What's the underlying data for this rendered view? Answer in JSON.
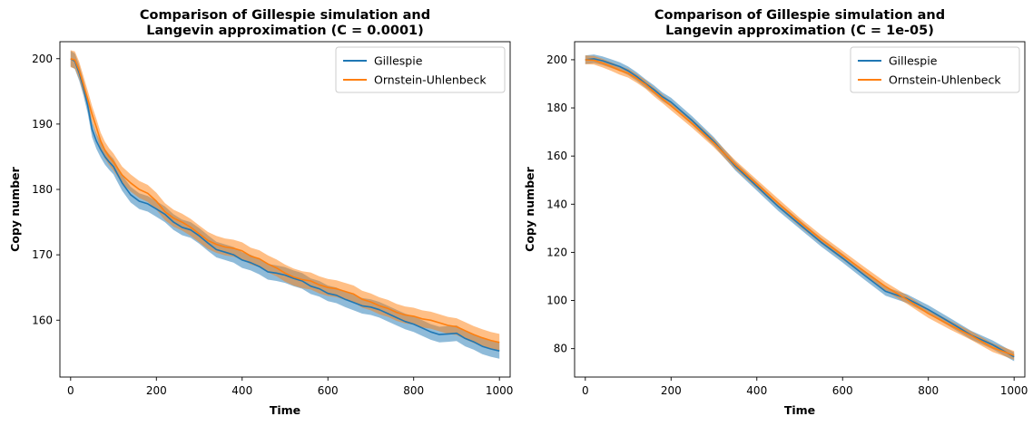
{
  "colors": {
    "gillespie": "#1f77b4",
    "ou": "#ff7f0e"
  },
  "chart_data": [
    {
      "type": "line",
      "title": "Comparison of Gillespie simulation and\nLangevin approximation (C = 0.0001)",
      "xlabel": "Time",
      "ylabel": "Copy number",
      "xlim": [
        -25,
        1025
      ],
      "ylim": [
        151.3,
        202.6
      ],
      "xticks": [
        0,
        200,
        400,
        600,
        800,
        1000
      ],
      "yticks": [
        160,
        170,
        180,
        190,
        200
      ],
      "legend_position": "upper-right",
      "series": [
        {
          "name": "Gillespie",
          "color": "#1f77b4",
          "band": 1.2,
          "x": [
            0,
            10,
            20,
            30,
            40,
            50,
            60,
            70,
            80,
            90,
            100,
            120,
            140,
            160,
            180,
            200,
            220,
            240,
            260,
            280,
            300,
            320,
            340,
            360,
            380,
            400,
            420,
            440,
            460,
            480,
            500,
            520,
            540,
            560,
            580,
            600,
            620,
            640,
            660,
            680,
            700,
            720,
            740,
            760,
            780,
            800,
            820,
            840,
            860,
            880,
            900,
            920,
            940,
            960,
            980,
            1000
          ],
          "y": [
            200,
            199.6,
            197.8,
            195.5,
            192.8,
            189.2,
            187.4,
            186.1,
            185.0,
            184.2,
            183.5,
            181.0,
            179.2,
            178.2,
            177.8,
            177.0,
            176.2,
            175.0,
            174.2,
            173.8,
            172.9,
            171.8,
            170.8,
            170.4,
            170.0,
            169.2,
            168.8,
            168.2,
            167.4,
            167.2,
            166.9,
            166.4,
            166.0,
            165.2,
            164.8,
            164.1,
            163.8,
            163.2,
            162.7,
            162.2,
            162.0,
            161.6,
            161.0,
            160.4,
            159.8,
            159.4,
            158.8,
            158.2,
            157.8,
            157.9,
            158.0,
            157.2,
            156.7,
            156.0,
            155.6,
            155.3
          ]
        },
        {
          "name": "Ornstein-Uhlenbeck",
          "color": "#ff7f0e",
          "band": 1.3,
          "x": [
            0,
            10,
            20,
            30,
            40,
            50,
            60,
            70,
            80,
            90,
            100,
            120,
            140,
            160,
            180,
            200,
            220,
            240,
            260,
            280,
            300,
            320,
            340,
            360,
            380,
            400,
            420,
            440,
            460,
            480,
            500,
            520,
            540,
            560,
            580,
            600,
            620,
            640,
            660,
            680,
            700,
            720,
            740,
            760,
            780,
            800,
            820,
            840,
            860,
            880,
            900,
            920,
            940,
            960,
            980,
            1000
          ],
          "y": [
            200,
            199.8,
            198.2,
            196.0,
            193.8,
            191.5,
            189.5,
            187.4,
            186.0,
            185.0,
            184.2,
            182.2,
            181.0,
            180.0,
            179.4,
            178.2,
            176.6,
            175.6,
            175.0,
            174.2,
            173.2,
            172.2,
            171.6,
            171.2,
            171.0,
            170.6,
            169.8,
            169.4,
            168.6,
            168.0,
            167.2,
            166.6,
            166.2,
            166.0,
            165.4,
            165.0,
            164.8,
            164.4,
            164.0,
            163.2,
            162.8,
            162.2,
            161.8,
            161.2,
            160.8,
            160.6,
            160.2,
            160.0,
            159.6,
            159.2,
            159.0,
            158.4,
            157.8,
            157.3,
            156.9,
            156.6
          ]
        }
      ]
    },
    {
      "type": "line",
      "title": "Comparison of Gillespie simulation and\nLangevin approximation (C = 1e-05)",
      "xlabel": "Time",
      "ylabel": "Copy number",
      "xlim": [
        -25,
        1025
      ],
      "ylim": [
        68.2,
        207.5
      ],
      "xticks": [
        0,
        200,
        400,
        600,
        800,
        1000
      ],
      "yticks": [
        80,
        100,
        120,
        140,
        160,
        180,
        200
      ],
      "legend_position": "upper-right",
      "series": [
        {
          "name": "Gillespie",
          "color": "#1f77b4",
          "band": 1.8,
          "x": [
            0,
            20,
            40,
            60,
            80,
            100,
            120,
            140,
            160,
            180,
            200,
            250,
            300,
            350,
            400,
            450,
            500,
            550,
            600,
            650,
            700,
            750,
            800,
            850,
            900,
            950,
            1000
          ],
          "y": [
            200,
            200.4,
            199.6,
            198.4,
            197.2,
            195.4,
            193.0,
            190.2,
            187.6,
            184.6,
            182.4,
            174.6,
            166.0,
            155.8,
            147.4,
            139.0,
            131.6,
            124.2,
            117.6,
            110.6,
            103.8,
            100.8,
            96.2,
            91.0,
            85.6,
            81.6,
            76.6
          ]
        },
        {
          "name": "Ornstein-Uhlenbeck",
          "color": "#ff7f0e",
          "band": 1.8,
          "x": [
            0,
            20,
            40,
            60,
            80,
            100,
            120,
            140,
            160,
            180,
            200,
            250,
            300,
            350,
            400,
            450,
            500,
            550,
            600,
            650,
            700,
            750,
            800,
            850,
            900,
            950,
            1000
          ],
          "y": [
            200,
            199.8,
            198.6,
            197.2,
            195.6,
            194.4,
            192.2,
            189.8,
            186.6,
            183.8,
            180.8,
            173.4,
            165.4,
            156.4,
            148.4,
            140.4,
            132.6,
            125.4,
            118.8,
            112.2,
            105.8,
            100.4,
            94.6,
            89.8,
            85.4,
            80.4,
            77.2
          ]
        }
      ]
    }
  ]
}
